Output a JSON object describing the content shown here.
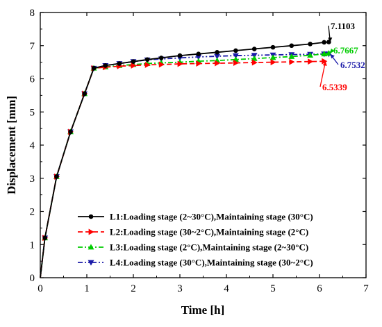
{
  "chart_data": {
    "type": "line",
    "xlabel": "Time [h]",
    "ylabel": "Displacement [mm]",
    "xlim": [
      0,
      7
    ],
    "ylim": [
      0,
      8
    ],
    "xticks": [
      "0",
      "1",
      "2",
      "3",
      "4",
      "5",
      "6",
      "7"
    ],
    "yticks": [
      "0",
      "1",
      "2",
      "3",
      "4",
      "5",
      "6",
      "7",
      "8"
    ],
    "grid": false,
    "legend_position": "bottom-right",
    "series": [
      {
        "name": "L1:Loading stage (2~30°C),Maintaining stage (30°C)",
        "color": "#000000",
        "marker": "circle",
        "dash": "solid",
        "x": [
          0,
          0.1,
          0.35,
          0.65,
          0.95,
          1.15,
          1.4,
          1.7,
          2.0,
          2.3,
          2.6,
          3.0,
          3.4,
          3.8,
          4.2,
          4.6,
          5.0,
          5.4,
          5.8,
          6.1,
          6.2
        ],
        "y": [
          0,
          1.2,
          3.05,
          4.4,
          5.55,
          6.32,
          6.4,
          6.46,
          6.52,
          6.58,
          6.63,
          6.7,
          6.75,
          6.8,
          6.85,
          6.9,
          6.95,
          7.0,
          7.05,
          7.1,
          7.11
        ]
      },
      {
        "name": "L2:Loading stage (30~2°C),Maintaining stage (2°C)",
        "color": "#ff0000",
        "marker": "triangle-right",
        "dash": "dash",
        "x": [
          0,
          0.1,
          0.35,
          0.65,
          0.95,
          1.15,
          1.4,
          1.7,
          2.0,
          2.3,
          2.6,
          3.0,
          3.4,
          3.8,
          4.2,
          4.6,
          5.0,
          5.4,
          5.8,
          6.1
        ],
        "y": [
          0,
          1.2,
          3.05,
          4.4,
          5.55,
          6.32,
          6.35,
          6.38,
          6.4,
          6.42,
          6.43,
          6.45,
          6.46,
          6.47,
          6.48,
          6.49,
          6.5,
          6.51,
          6.52,
          6.53
        ]
      },
      {
        "name": "L3:Loading stage (2°C),Maintaining stage (2~30°C)",
        "color": "#00cc00",
        "marker": "triangle-up",
        "dash": "dashdot",
        "x": [
          0,
          0.1,
          0.35,
          0.65,
          0.95,
          1.15,
          1.4,
          1.7,
          2.0,
          2.3,
          2.6,
          3.0,
          3.4,
          3.8,
          4.2,
          4.6,
          5.0,
          5.4,
          5.8,
          6.1,
          6.2
        ],
        "y": [
          0,
          1.2,
          3.05,
          4.4,
          5.55,
          6.32,
          6.36,
          6.4,
          6.43,
          6.46,
          6.48,
          6.5,
          6.53,
          6.55,
          6.58,
          6.61,
          6.64,
          6.67,
          6.71,
          6.75,
          6.77
        ]
      },
      {
        "name": "L4:Loading stage (30°C),Maintaining stage (30~2°C)",
        "color": "#1a1aa8",
        "marker": "triangle-down",
        "dash": "dashdotdot",
        "x": [
          0,
          0.1,
          0.35,
          0.65,
          0.95,
          1.15,
          1.4,
          1.7,
          2.0,
          2.3,
          2.6,
          3.0,
          3.4,
          3.8,
          4.2,
          4.6,
          5.0,
          5.4,
          5.8,
          6.1,
          6.2
        ],
        "y": [
          0,
          1.2,
          3.05,
          4.4,
          5.55,
          6.32,
          6.4,
          6.46,
          6.52,
          6.57,
          6.6,
          6.63,
          6.66,
          6.68,
          6.7,
          6.71,
          6.72,
          6.73,
          6.74,
          6.75,
          6.75
        ]
      }
    ],
    "annotations": [
      {
        "text": "7.1103",
        "color": "#000000",
        "series": 0
      },
      {
        "text": "6.7667",
        "color": "#00cc00",
        "series": 2
      },
      {
        "text": "6.7532",
        "color": "#1a1aa8",
        "series": 3
      },
      {
        "text": "6.5339",
        "color": "#ff0000",
        "series": 1
      }
    ]
  }
}
